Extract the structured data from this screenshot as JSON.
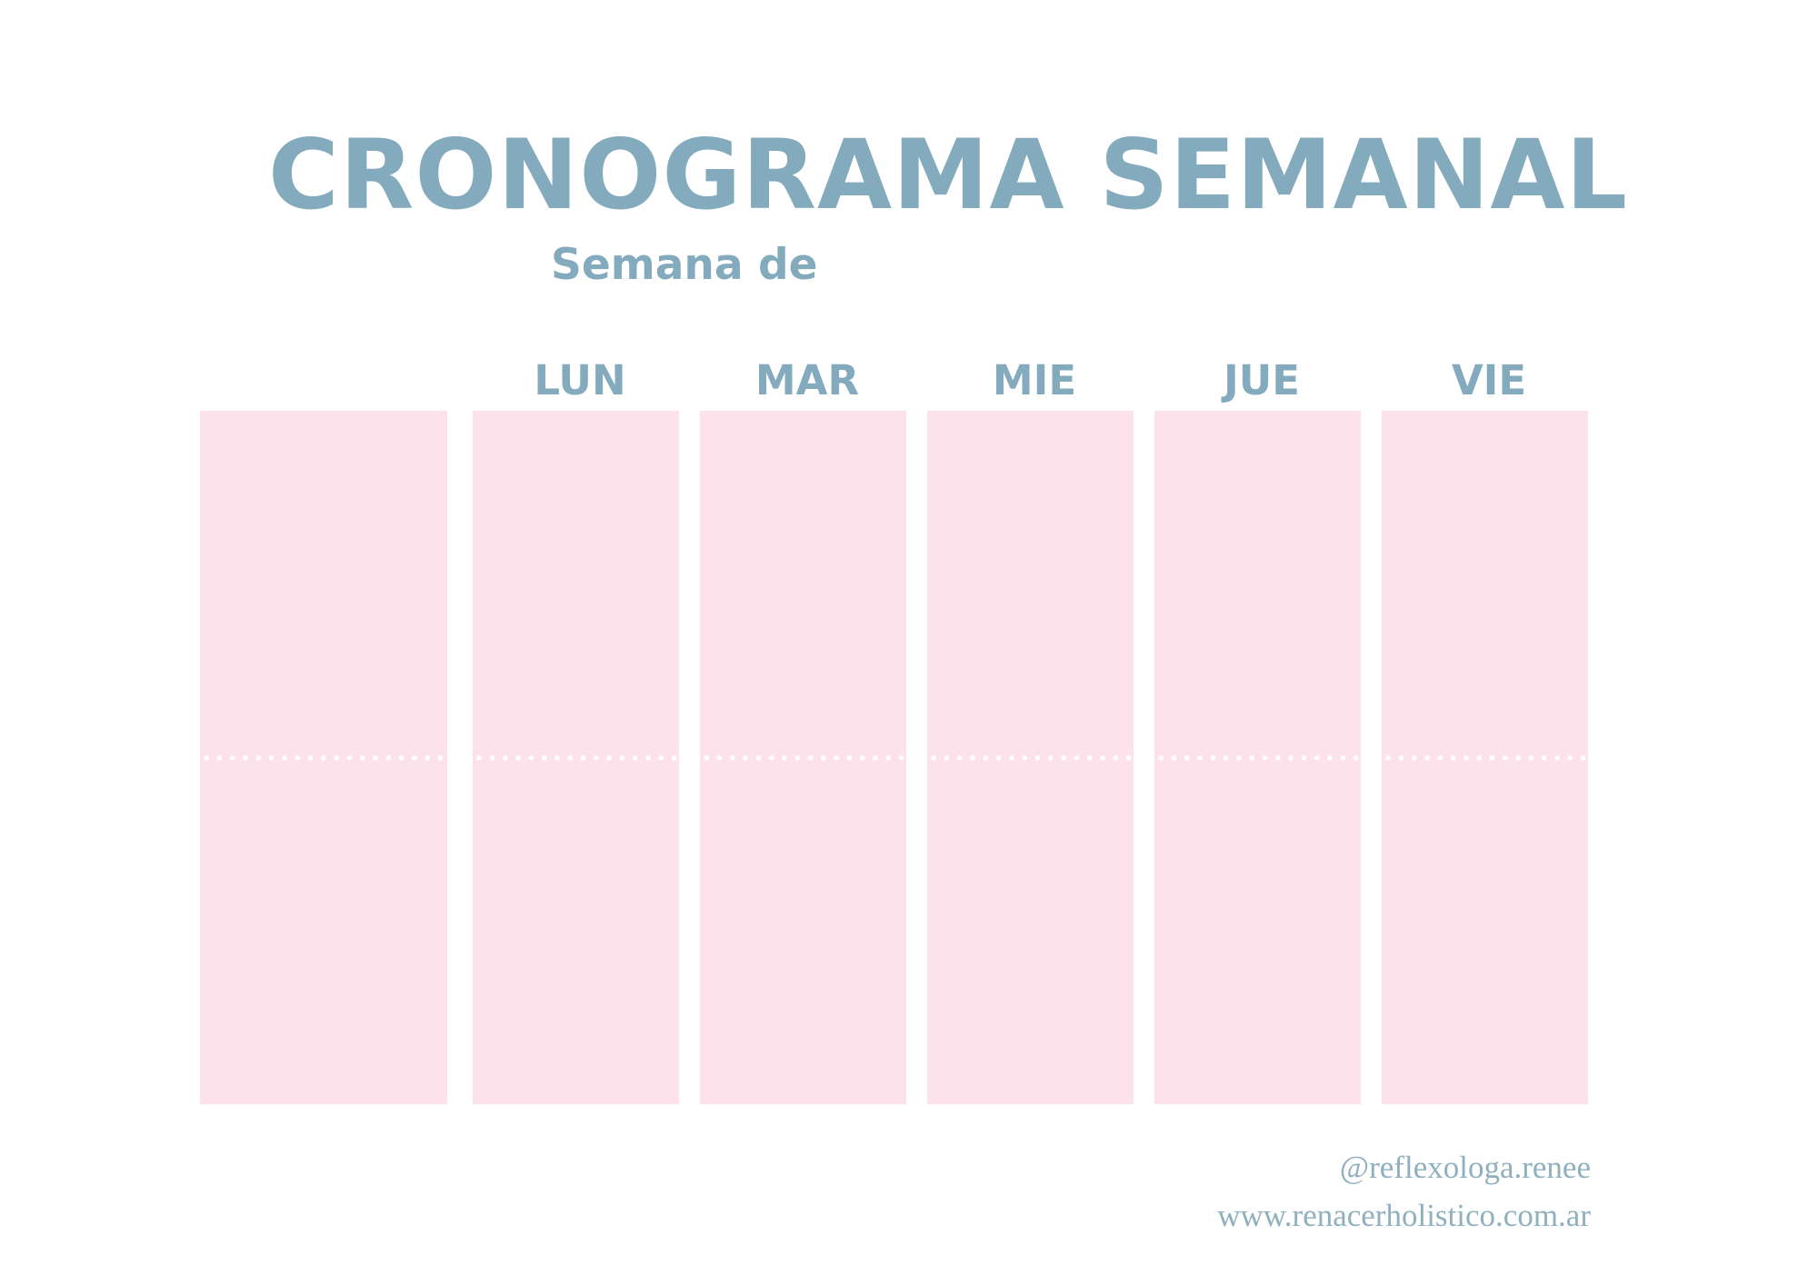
{
  "header": {
    "title": "CRONOGRAMA SEMANAL",
    "subtitle": "Semana de"
  },
  "schedule": {
    "days": [
      "LUN",
      "MAR",
      "MIE",
      "JUE",
      "VIE"
    ]
  },
  "footer": {
    "handle": "@reflexologa.renee",
    "website": "www.renacerholistico.com.ar"
  },
  "colors": {
    "text_accent": "#84abbd",
    "column_fill": "#fde2ec",
    "background": "#ffffff"
  }
}
